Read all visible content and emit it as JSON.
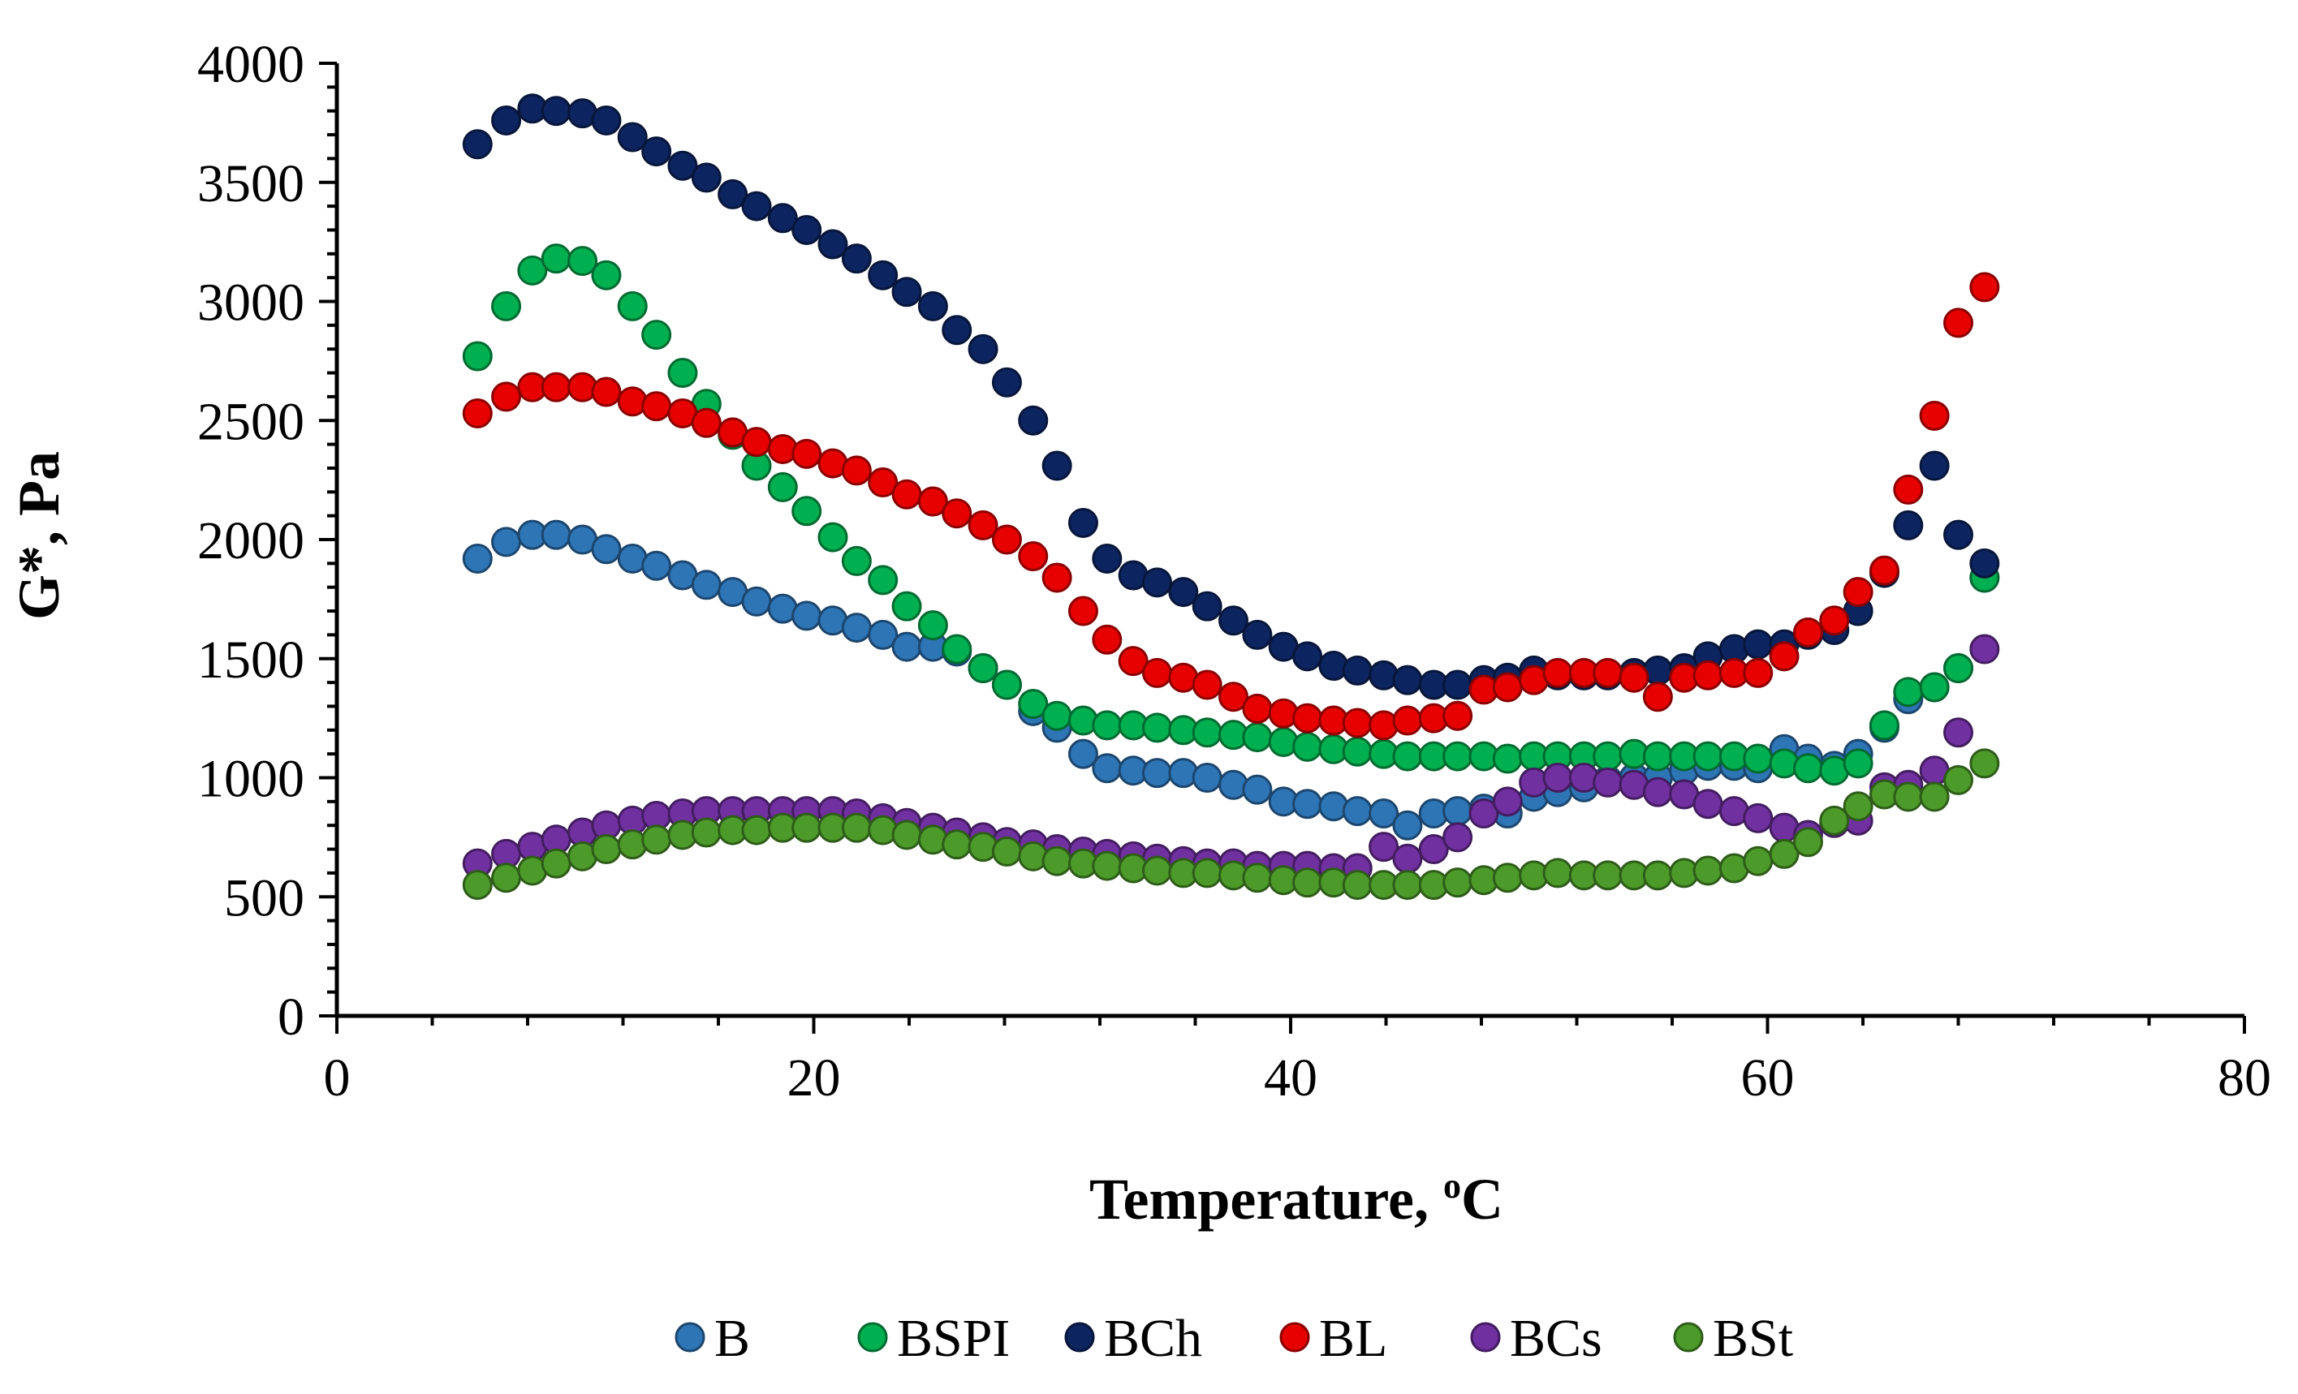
{
  "chart_data": {
    "type": "scatter",
    "title": "",
    "xlabel": "Temperature, ",
    "xlabel_sup": "o",
    "xlabel_unit": "C",
    "ylabel": "G*, Pa",
    "xlim": [
      0,
      80
    ],
    "ylim": [
      0,
      4000
    ],
    "x_ticks": [
      0,
      20,
      40,
      60,
      80
    ],
    "y_ticks": [
      0,
      500,
      1000,
      1500,
      2000,
      2500,
      3000,
      3500,
      4000
    ],
    "x_tick_labels": [
      "0",
      "20",
      "40",
      "60",
      "80"
    ],
    "y_tick_labels": [
      "0",
      "500",
      "1000",
      "1500",
      "2000",
      "2500",
      "3000",
      "3500",
      "4000"
    ],
    "grid": false,
    "legend_position": "bottom",
    "series": [
      {
        "name": "B",
        "color": "#2E75B6",
        "x": [
          5.9,
          7.1,
          8.2,
          9.2,
          10.3,
          11.3,
          12.4,
          13.4,
          14.5,
          15.5,
          16.6,
          17.6,
          18.7,
          19.7,
          20.8,
          21.8,
          22.9,
          23.9,
          25.0,
          26.0,
          27.1,
          28.1,
          29.2,
          30.2,
          31.3,
          32.3,
          33.4,
          34.4,
          35.5,
          36.5,
          37.6,
          38.6,
          39.7,
          40.7,
          41.8,
          42.8,
          43.9,
          44.9,
          46.0,
          47.0,
          48.1,
          49.1,
          50.2,
          51.2,
          52.3,
          53.3,
          54.4,
          55.4,
          56.5,
          57.5,
          58.6,
          59.6,
          60.7,
          61.7,
          62.8,
          63.8,
          64.9,
          65.9,
          67.0,
          68.0,
          69.1
        ],
        "y": [
          1920,
          1990,
          2020,
          2020,
          2000,
          1960,
          1920,
          1890,
          1850,
          1810,
          1780,
          1740,
          1710,
          1680,
          1660,
          1630,
          1600,
          1550,
          1550,
          1530,
          1460,
          1390,
          1280,
          1210,
          1100,
          1040,
          1030,
          1020,
          1020,
          1000,
          970,
          950,
          900,
          890,
          880,
          860,
          850,
          800,
          850,
          860,
          870,
          850,
          920,
          940,
          960,
          990,
          1000,
          1000,
          1030,
          1050,
          1050,
          1040,
          1120,
          1080,
          1050,
          1100,
          1210,
          1330,
          1380,
          1460,
          1840
        ]
      },
      {
        "name": "BSPI",
        "color": "#00B050",
        "x": [
          5.9,
          7.1,
          8.2,
          9.2,
          10.3,
          11.3,
          12.4,
          13.4,
          14.5,
          15.5,
          16.6,
          17.6,
          18.7,
          19.7,
          20.8,
          21.8,
          22.9,
          23.9,
          25.0,
          26.0,
          27.1,
          28.1,
          29.2,
          30.2,
          31.3,
          32.3,
          33.4,
          34.4,
          35.5,
          36.5,
          37.6,
          38.6,
          39.7,
          40.7,
          41.8,
          42.8,
          43.9,
          44.9,
          46.0,
          47.0,
          48.1,
          49.1,
          50.2,
          51.2,
          52.3,
          53.3,
          54.4,
          55.4,
          56.5,
          57.5,
          58.6,
          59.6,
          60.7,
          61.7,
          62.8,
          63.8,
          64.9,
          65.9,
          67.0,
          68.0,
          69.1
        ],
        "y": [
          2770,
          2980,
          3130,
          3180,
          3170,
          3110,
          2980,
          2860,
          2700,
          2570,
          2440,
          2310,
          2220,
          2120,
          2010,
          1910,
          1830,
          1720,
          1640,
          1540,
          1460,
          1390,
          1310,
          1260,
          1240,
          1220,
          1220,
          1210,
          1200,
          1190,
          1180,
          1170,
          1150,
          1130,
          1120,
          1110,
          1100,
          1090,
          1090,
          1090,
          1090,
          1080,
          1090,
          1090,
          1090,
          1090,
          1100,
          1090,
          1090,
          1090,
          1090,
          1080,
          1060,
          1040,
          1030,
          1060,
          1220,
          1360,
          1380,
          1460,
          1840
        ]
      },
      {
        "name": "BCh",
        "color": "#0C2460",
        "x": [
          5.9,
          7.1,
          8.2,
          9.2,
          10.3,
          11.3,
          12.4,
          13.4,
          14.5,
          15.5,
          16.6,
          17.6,
          18.7,
          19.7,
          20.8,
          21.8,
          22.9,
          23.9,
          25.0,
          26.0,
          27.1,
          28.1,
          29.2,
          30.2,
          31.3,
          32.3,
          33.4,
          34.4,
          35.5,
          36.5,
          37.6,
          38.6,
          39.7,
          40.7,
          41.8,
          42.8,
          43.9,
          44.9,
          46.0,
          47.0,
          48.1,
          49.1,
          50.2,
          51.2,
          52.3,
          53.3,
          54.4,
          55.4,
          56.5,
          57.5,
          58.6,
          59.6,
          60.7,
          61.7,
          62.8,
          63.8,
          64.9,
          65.9,
          67.0,
          68.0,
          69.1
        ],
        "y": [
          3660,
          3760,
          3810,
          3800,
          3790,
          3760,
          3690,
          3630,
          3570,
          3520,
          3450,
          3400,
          3350,
          3300,
          3240,
          3180,
          3110,
          3040,
          2980,
          2880,
          2800,
          2660,
          2500,
          2310,
          2070,
          1920,
          1850,
          1820,
          1780,
          1720,
          1660,
          1600,
          1550,
          1510,
          1470,
          1450,
          1430,
          1410,
          1390,
          1390,
          1410,
          1420,
          1450,
          1430,
          1430,
          1430,
          1440,
          1450,
          1460,
          1510,
          1540,
          1560,
          1560,
          1600,
          1620,
          1700,
          1860,
          2060,
          2310,
          2020,
          1900
        ]
      },
      {
        "name": "BL",
        "color": "#E60000",
        "x": [
          5.9,
          7.1,
          8.2,
          9.2,
          10.3,
          11.3,
          12.4,
          13.4,
          14.5,
          15.5,
          16.6,
          17.6,
          18.7,
          19.7,
          20.8,
          21.8,
          22.9,
          23.9,
          25.0,
          26.0,
          27.1,
          28.1,
          29.2,
          30.2,
          31.3,
          32.3,
          33.4,
          34.4,
          35.5,
          36.5,
          37.6,
          38.6,
          39.7,
          40.7,
          41.8,
          42.8,
          43.9,
          44.9,
          46.0,
          47.0,
          48.1,
          49.1,
          50.2,
          51.2,
          52.3,
          53.3,
          54.4,
          55.4,
          56.5,
          57.5,
          58.6,
          59.6,
          60.7,
          61.7,
          62.8,
          63.8,
          64.9,
          65.9,
          67.0,
          68.0,
          69.1
        ],
        "y": [
          2530,
          2600,
          2640,
          2640,
          2640,
          2620,
          2580,
          2560,
          2530,
          2490,
          2450,
          2410,
          2380,
          2360,
          2320,
          2290,
          2240,
          2190,
          2160,
          2110,
          2060,
          2000,
          1930,
          1840,
          1700,
          1580,
          1490,
          1440,
          1420,
          1390,
          1340,
          1290,
          1270,
          1250,
          1240,
          1230,
          1220,
          1240,
          1250,
          1260,
          1370,
          1380,
          1410,
          1440,
          1440,
          1440,
          1420,
          1340,
          1420,
          1430,
          1440,
          1440,
          1510,
          1610,
          1660,
          1780,
          1870,
          2210,
          2520,
          2910,
          3060
        ]
      },
      {
        "name": "BCs",
        "color": "#7030A0",
        "x": [
          5.9,
          7.1,
          8.2,
          9.2,
          10.3,
          11.3,
          12.4,
          13.4,
          14.5,
          15.5,
          16.6,
          17.6,
          18.7,
          19.7,
          20.8,
          21.8,
          22.9,
          23.9,
          25.0,
          26.0,
          27.1,
          28.1,
          29.2,
          30.2,
          31.3,
          32.3,
          33.4,
          34.4,
          35.5,
          36.5,
          37.6,
          38.6,
          39.7,
          40.7,
          41.8,
          42.8,
          43.9,
          44.9,
          46.0,
          47.0,
          48.1,
          49.1,
          50.2,
          51.2,
          52.3,
          53.3,
          54.4,
          55.4,
          56.5,
          57.5,
          58.6,
          59.6,
          60.7,
          61.7,
          62.8,
          63.8,
          64.9,
          65.9,
          67.0,
          68.0,
          69.1
        ],
        "y": [
          640,
          680,
          710,
          740,
          770,
          800,
          820,
          840,
          850,
          860,
          860,
          860,
          860,
          860,
          860,
          850,
          830,
          810,
          790,
          770,
          750,
          730,
          720,
          700,
          690,
          680,
          670,
          660,
          650,
          640,
          640,
          630,
          630,
          630,
          620,
          620,
          710,
          660,
          700,
          750,
          850,
          900,
          980,
          1000,
          1000,
          980,
          970,
          940,
          930,
          890,
          860,
          830,
          790,
          760,
          810,
          820,
          960,
          970,
          1030,
          1190,
          1540
        ]
      },
      {
        "name": "BSt",
        "color": "#4C9A2A",
        "x": [
          5.9,
          7.1,
          8.2,
          9.2,
          10.3,
          11.3,
          12.4,
          13.4,
          14.5,
          15.5,
          16.6,
          17.6,
          18.7,
          19.7,
          20.8,
          21.8,
          22.9,
          23.9,
          25.0,
          26.0,
          27.1,
          28.1,
          29.2,
          30.2,
          31.3,
          32.3,
          33.4,
          34.4,
          35.5,
          36.5,
          37.6,
          38.6,
          39.7,
          40.7,
          41.8,
          42.8,
          43.9,
          44.9,
          46.0,
          47.0,
          48.1,
          49.1,
          50.2,
          51.2,
          52.3,
          53.3,
          54.4,
          55.4,
          56.5,
          57.5,
          58.6,
          59.6,
          60.7,
          61.7,
          62.8,
          63.8,
          64.9,
          65.9,
          67.0,
          68.0,
          69.1
        ],
        "y": [
          550,
          580,
          610,
          640,
          670,
          700,
          720,
          740,
          760,
          770,
          780,
          780,
          790,
          790,
          790,
          790,
          780,
          760,
          740,
          720,
          710,
          690,
          670,
          650,
          640,
          630,
          620,
          610,
          600,
          600,
          590,
          580,
          570,
          560,
          560,
          550,
          550,
          550,
          550,
          560,
          570,
          580,
          590,
          600,
          590,
          590,
          590,
          590,
          600,
          610,
          620,
          650,
          680,
          730,
          820,
          880,
          930,
          920,
          920,
          990,
          1060
        ]
      }
    ]
  }
}
